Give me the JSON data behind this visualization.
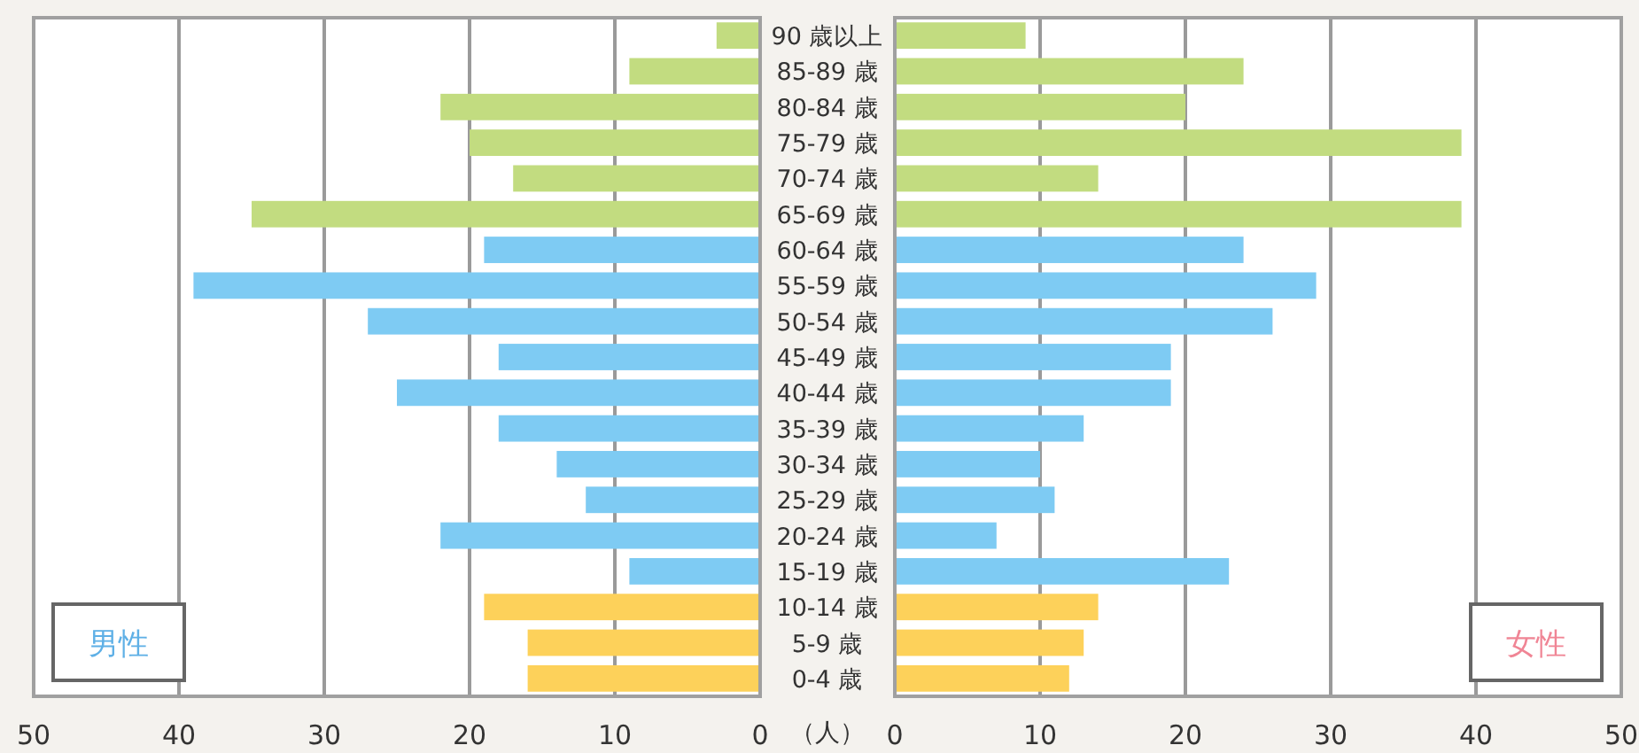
{
  "chart_data": [
    {
      "type": "bar",
      "orientation": "horizontal",
      "title": "男性",
      "xlabel": "（人）",
      "categories": [
        "90 歳以上",
        "85-89 歳",
        "80-84 歳",
        "75-79 歳",
        "70-74 歳",
        "65-69 歳",
        "60-64 歳",
        "55-59 歳",
        "50-54 歳",
        "45-49 歳",
        "40-44 歳",
        "35-39 歳",
        "30-34 歳",
        "25-29 歳",
        "20-24 歳",
        "15-19 歳",
        "10-14 歳",
        "5-9 歳",
        "0-4 歳"
      ],
      "values": [
        3,
        9,
        22,
        20,
        17,
        35,
        19,
        39,
        27,
        18,
        25,
        18,
        14,
        12,
        22,
        9,
        19,
        16,
        16
      ],
      "colors": [
        "#c2dc80",
        "#c2dc80",
        "#c2dc80",
        "#c2dc80",
        "#c2dc80",
        "#c2dc80",
        "#7ecbf3",
        "#7ecbf3",
        "#7ecbf3",
        "#7ecbf3",
        "#7ecbf3",
        "#7ecbf3",
        "#7ecbf3",
        "#7ecbf3",
        "#7ecbf3",
        "#7ecbf3",
        "#fdd15a",
        "#fdd15a",
        "#fdd15a"
      ],
      "xlim": [
        50,
        0
      ],
      "xticks": [
        50,
        40,
        30,
        20,
        10,
        0
      ],
      "grid": "x"
    },
    {
      "type": "bar",
      "orientation": "horizontal",
      "title": "女性",
      "tick_labels": "x",
      "categories": [
        null,
        null,
        null,
        null,
        null,
        null,
        null,
        null,
        null,
        null,
        null,
        null,
        null,
        null,
        null,
        null,
        null,
        null,
        null
      ],
      "values": [
        9,
        24,
        20,
        39,
        14,
        39,
        24,
        29,
        26,
        19,
        19,
        13,
        10,
        11,
        7,
        23,
        14,
        13,
        12
      ],
      "colors": [
        "#c2dc80",
        "#c2dc80",
        "#c2dc80",
        "#c2dc80",
        "#c2dc80",
        "#c2dc80",
        "#7ecbf3",
        "#7ecbf3",
        "#7ecbf3",
        "#7ecbf3",
        "#7ecbf3",
        "#7ecbf3",
        "#7ecbf3",
        "#7ecbf3",
        "#7ecbf3",
        "#7ecbf3",
        "#fdd15a",
        "#fdd15a",
        "#fdd15a"
      ],
      "xlim": [
        0,
        50
      ],
      "xticks": [
        0,
        10,
        20,
        30,
        40,
        50
      ],
      "grid": "x"
    }
  ]
}
